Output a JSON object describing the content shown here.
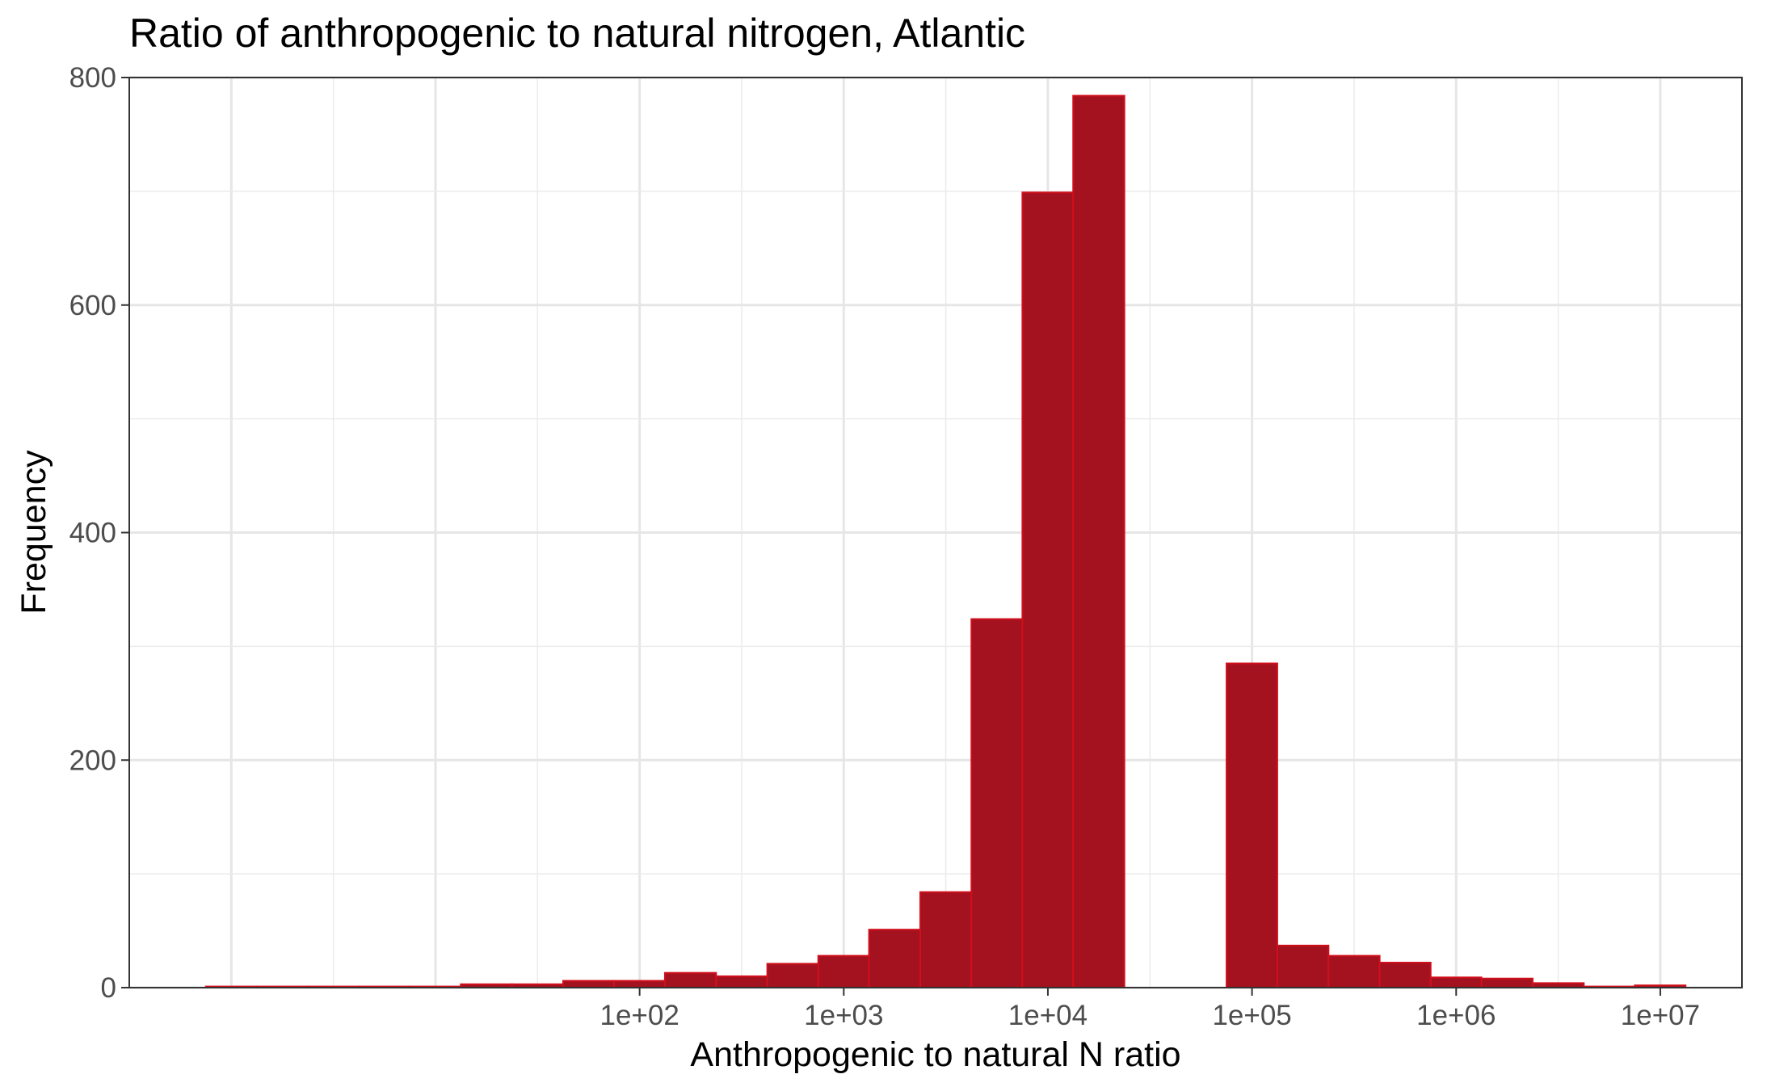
{
  "chart_data": {
    "type": "bar",
    "title": "Ratio of anthropogenic to natural nitrogen, Atlantic",
    "xlabel": "Anthropogenic to natural N ratio",
    "ylabel": "Frequency",
    "x_scale": "log10",
    "ylim": [
      0,
      800
    ],
    "y_ticks": [
      0,
      200,
      400,
      600,
      800
    ],
    "x_ticks": [
      {
        "value": 100,
        "label": "1e+02"
      },
      {
        "value": 1000,
        "label": "1e+03"
      },
      {
        "value": 10000,
        "label": "1e+04"
      },
      {
        "value": 100000,
        "label": "1e+05"
      },
      {
        "value": 1000000,
        "label": "1e+06"
      },
      {
        "value": 10000000,
        "label": "1e+07"
      }
    ],
    "grid": true,
    "bar_color": "#a3121e",
    "bar_edge_color": "#d0101c",
    "bins": [
      {
        "from": 0.75,
        "to": 1.33,
        "count": 1
      },
      {
        "from": 1.33,
        "to": 2.37,
        "count": 1
      },
      {
        "from": 2.37,
        "to": 4.22,
        "count": 1
      },
      {
        "from": 4.22,
        "to": 7.5,
        "count": 1
      },
      {
        "from": 7.5,
        "to": 13.3,
        "count": 1
      },
      {
        "from": 13.3,
        "to": 23.7,
        "count": 3
      },
      {
        "from": 23.7,
        "to": 42.2,
        "count": 3
      },
      {
        "from": 42.2,
        "to": 75,
        "count": 6
      },
      {
        "from": 75,
        "to": 133,
        "count": 6
      },
      {
        "from": 133,
        "to": 237,
        "count": 13
      },
      {
        "from": 237,
        "to": 422,
        "count": 10
      },
      {
        "from": 422,
        "to": 750,
        "count": 21
      },
      {
        "from": 750,
        "to": 1330,
        "count": 28
      },
      {
        "from": 1330,
        "to": 2370,
        "count": 51
      },
      {
        "from": 2370,
        "to": 4220,
        "count": 84
      },
      {
        "from": 4220,
        "to": 7500,
        "count": 324
      },
      {
        "from": 7500,
        "to": 13300,
        "count": 699
      },
      {
        "from": 13300,
        "to": 23700,
        "count": 784
      },
      {
        "from": 23700,
        "to": 42200,
        "count": 0
      },
      {
        "from": 42200,
        "to": 75000,
        "count": 0
      },
      {
        "from": 75000,
        "to": 133000,
        "count": 285
      },
      {
        "from": 133000,
        "to": 237000,
        "count": 37
      },
      {
        "from": 237000,
        "to": 422000,
        "count": 28
      },
      {
        "from": 422000,
        "to": 750000,
        "count": 22
      },
      {
        "from": 750000,
        "to": 1330000,
        "count": 9
      },
      {
        "from": 1330000,
        "to": 2370000,
        "count": 8
      },
      {
        "from": 2370000,
        "to": 4220000,
        "count": 4
      },
      {
        "from": 4220000,
        "to": 7500000,
        "count": 1
      },
      {
        "from": 7500000,
        "to": 13300000,
        "count": 2
      }
    ]
  }
}
